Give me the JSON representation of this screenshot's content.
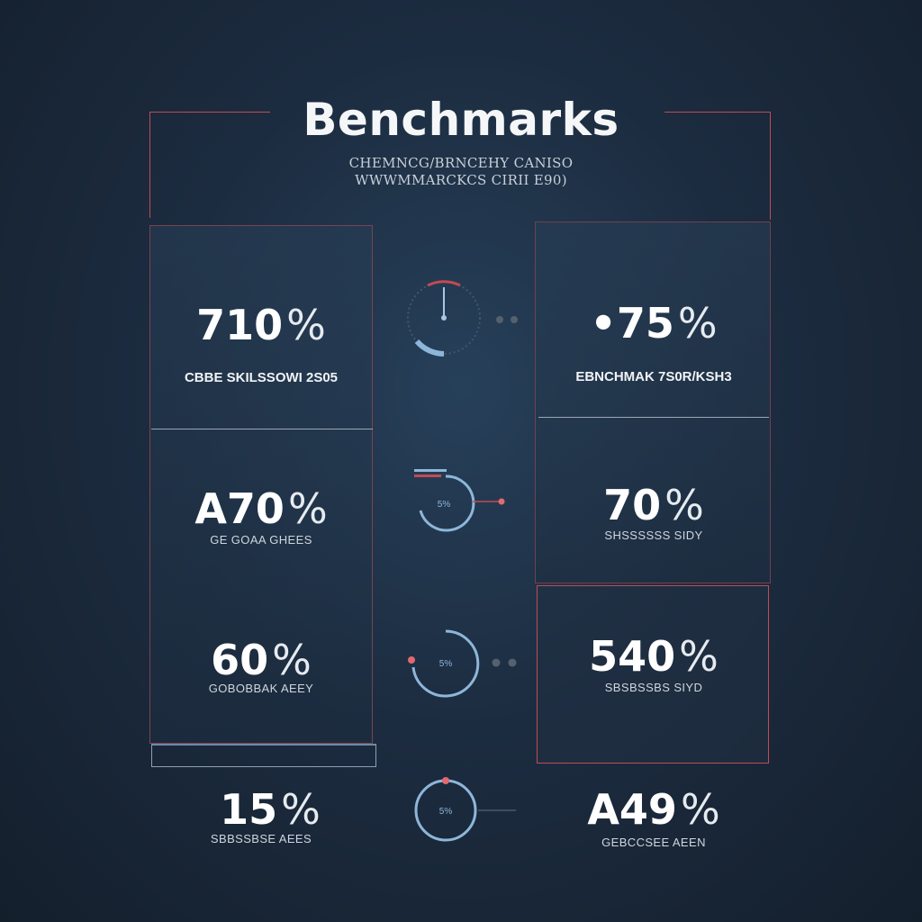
{
  "header": {
    "title": "Benchmarks",
    "subtitle_line1": "CHEMNCG/BRNCEHY CANISO",
    "subtitle_line2": "WWWMMARCKCS CIRII E90)"
  },
  "left_cards": [
    {
      "value": "710",
      "unit": "%",
      "label": "CBBE SKILSSOWI 2S05"
    },
    {
      "value": "A70",
      "unit": "%",
      "label": "GE GOAA GHEES"
    },
    {
      "value": "60",
      "unit": "%",
      "label": "GOBOBBAK AEEY"
    },
    {
      "value": "15",
      "unit": "%",
      "label": "SBBSSBSE AEES"
    }
  ],
  "right_cards": [
    {
      "value": "•75",
      "unit": "%",
      "label": "EBNCHMAK 7S0R/KSH3"
    },
    {
      "value": "70",
      "unit": "%",
      "label": "SHSSSSSS SIDY"
    },
    {
      "value": "540",
      "unit": "%",
      "label": "SBSBSSBS SIYD"
    },
    {
      "value": "A49",
      "unit": "%",
      "label": "GEBCCSEE AEEN"
    }
  ],
  "gauges": [
    {
      "label": "",
      "level": 0.85
    },
    {
      "label": "5%",
      "level": 0.6
    },
    {
      "label": "5%",
      "level": 0.7
    },
    {
      "label": "5%",
      "level": 0.9
    }
  ],
  "colors": {
    "accent_red": "#c24b52",
    "gauge_blue": "#8eb6d9",
    "background": "#1c2c40"
  }
}
